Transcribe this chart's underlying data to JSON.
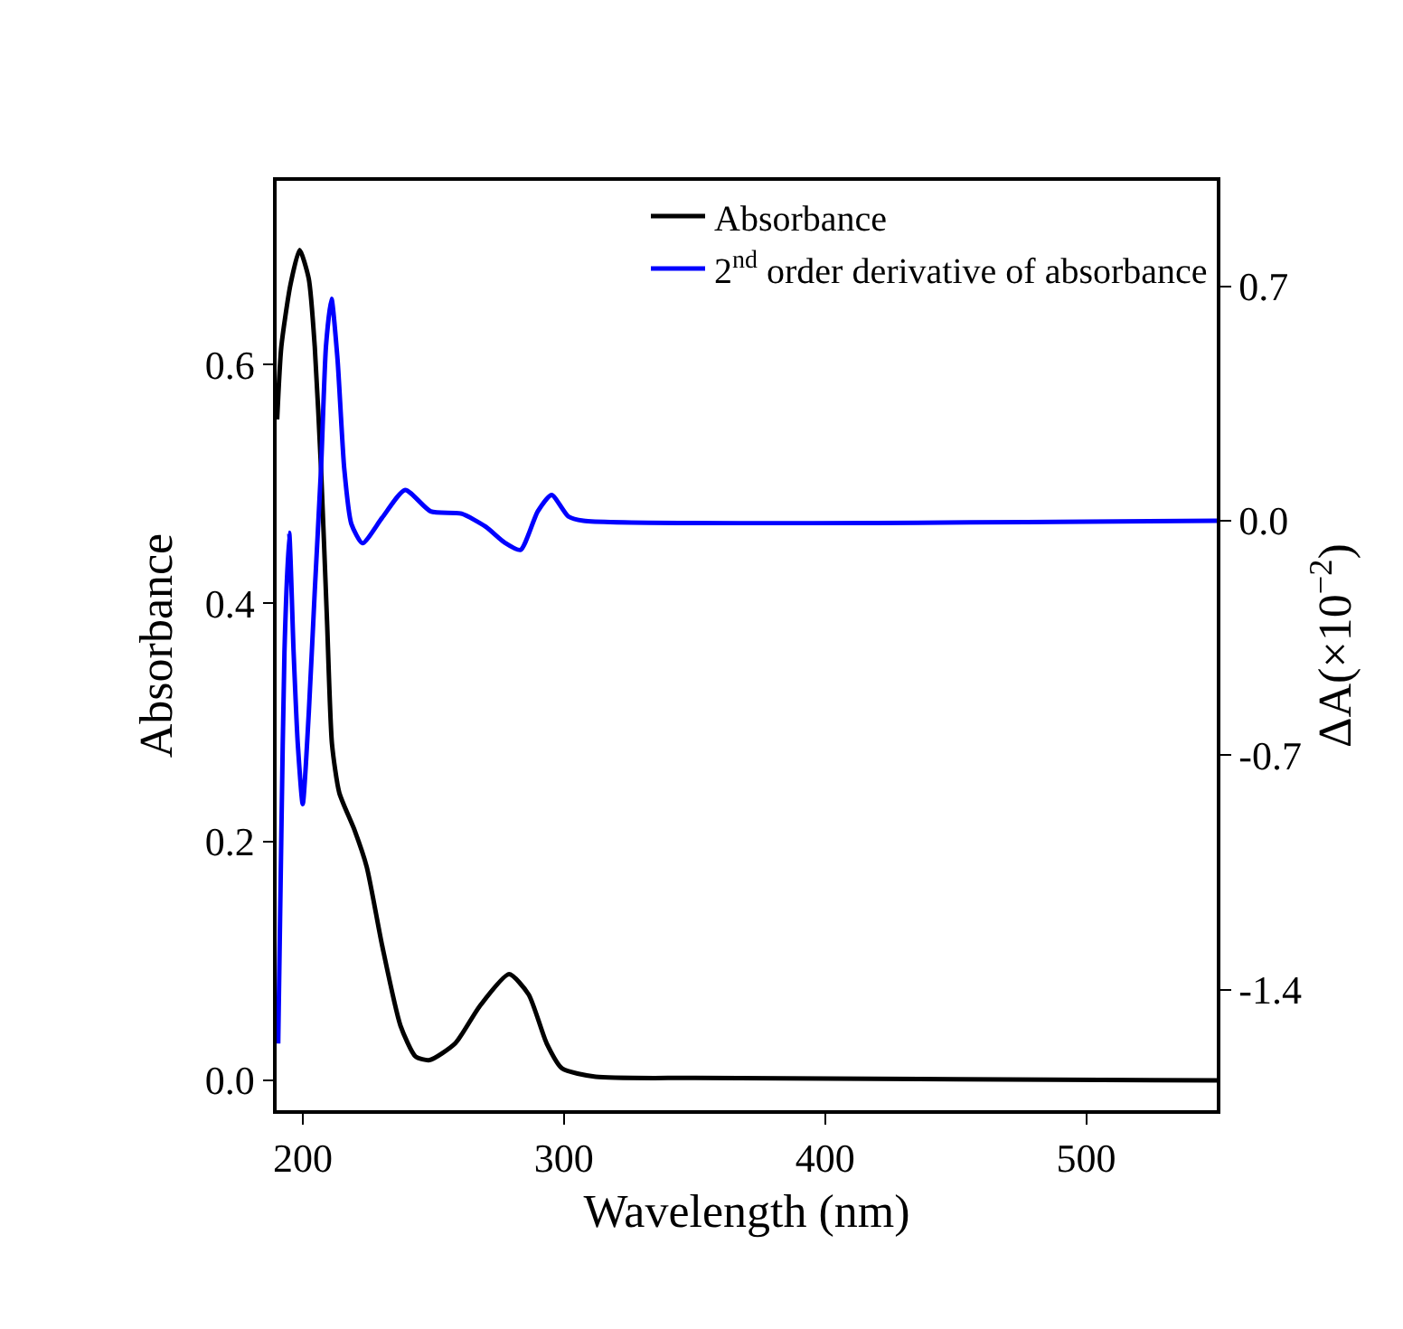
{
  "chart_data": {
    "type": "line",
    "xlabel": "Wavelength (nm)",
    "ylabel": "Absorbance",
    "y2label": "ΔA(×10$^{−2}$)",
    "xlim": [
      190,
      550
    ],
    "xticks": [
      200,
      300,
      400,
      500
    ],
    "ylim": [
      -0.025,
      0.754
    ],
    "yticks": [
      {
        "value": 0,
        "label": "0.0"
      },
      0.2,
      0.4,
      0.6
    ],
    "y2lim": [
      -1.76,
      1.015
    ],
    "y2ticks": [
      -1.4,
      -0.7,
      {
        "value": 0,
        "label": "0.0"
      },
      0.7
    ],
    "legend": "top right",
    "marker": "none",
    "line_style": "solid",
    "series": [
      {
        "name": "Absorbance",
        "color": "#000000",
        "x": [
          190.2,
          191.8,
          195.3,
          198.8,
          202.3,
          204.6,
          207.0,
          209.3,
          211.2,
          214.0,
          219.8,
          224.5,
          230.4,
          237.4,
          243.2,
          248.6,
          258.4,
          267.7,
          279.0,
          286.5,
          293.4,
          299.3,
          312.2,
          350,
          450,
          550
        ],
        "values": [
          0.554,
          0.615,
          0.667,
          0.696,
          0.672,
          0.615,
          0.513,
          0.385,
          0.282,
          0.241,
          0.21,
          0.179,
          0.113,
          0.046,
          0.02,
          0.017,
          0.031,
          0.062,
          0.089,
          0.072,
          0.031,
          0.01,
          0.003,
          0.002,
          0.001,
          0.0
        ]
      },
      {
        "name": "2$^{nd}$ order derivative of absorbance",
        "color": "#0000ff",
        "axis": "y2",
        "x": [
          190.6,
          191.8,
          193.0,
          194.8,
          196.5,
          198.1,
          200.0,
          202.3,
          204.6,
          207.0,
          208.9,
          211.0,
          213.3,
          215.9,
          218.6,
          222.9,
          230.4,
          239.2,
          249.0,
          260.8,
          270.1,
          277.1,
          283.4,
          290.0,
          295.3,
          301.7,
          307.5,
          550
        ],
        "values": [
          -1.561,
          -0.94,
          -0.392,
          -0.036,
          -0.392,
          -0.666,
          -0.846,
          -0.575,
          -0.21,
          0.155,
          0.521,
          0.663,
          0.484,
          0.155,
          -0.009,
          -0.067,
          0.009,
          0.092,
          0.028,
          0.021,
          -0.018,
          -0.064,
          -0.087,
          0.028,
          0.077,
          0.013,
          0.0,
          0.0
        ]
      }
    ]
  }
}
